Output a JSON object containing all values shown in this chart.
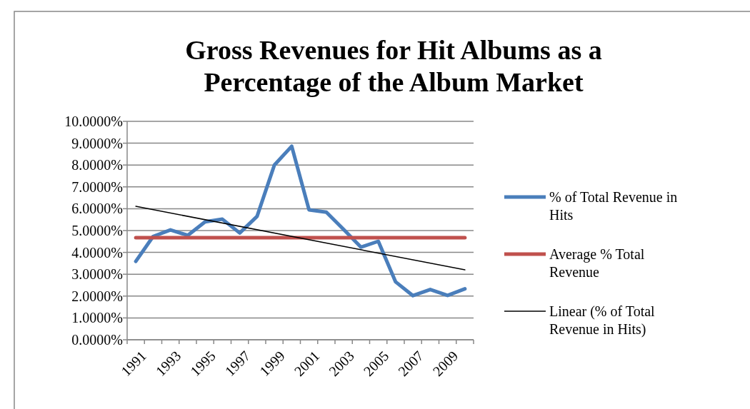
{
  "chart_data": {
    "type": "line",
    "title": "Gross Revenues for Hit Albums as a Percentage of the Album Market",
    "categories": [
      "1991",
      null,
      "1993",
      null,
      "1995",
      null,
      "1997",
      null,
      "1999",
      null,
      "2001",
      null,
      "2003",
      null,
      "2005",
      null,
      "2007",
      null,
      "2009",
      null
    ],
    "series": [
      {
        "name": "% of Total Revenue in Hits",
        "color": "#4a7ebb",
        "values": [
          3.59,
          4.73,
          5.03,
          4.78,
          5.4,
          5.52,
          4.89,
          5.65,
          8.0,
          8.86,
          5.95,
          5.84,
          5.05,
          4.24,
          4.51,
          2.65,
          2.02,
          2.3,
          2.03,
          2.33
        ]
      },
      {
        "name": "Average % Total Revenue",
        "color": "#c0504d",
        "values": [
          4.67,
          4.67,
          4.67,
          4.67,
          4.67,
          4.67,
          4.67,
          4.67,
          4.67,
          4.67,
          4.67,
          4.67,
          4.67,
          4.67,
          4.67,
          4.67,
          4.67,
          4.67,
          4.67,
          4.67
        ]
      },
      {
        "name": "Linear (% of Total Revenue in Hits)",
        "color": "#000000",
        "values": [
          6.11,
          null,
          null,
          null,
          null,
          null,
          null,
          null,
          null,
          null,
          null,
          null,
          null,
          null,
          null,
          null,
          null,
          null,
          null,
          3.2
        ]
      }
    ],
    "ylim": [
      0,
      10
    ],
    "yticks": [
      {
        "value": 0,
        "label": "0.0000%"
      },
      {
        "value": 1,
        "label": "1.0000%"
      },
      {
        "value": 2,
        "label": "2.0000%"
      },
      {
        "value": 3,
        "label": "3.0000%"
      },
      {
        "value": 4,
        "label": "4.0000%"
      },
      {
        "value": 5,
        "label": "5.0000%"
      },
      {
        "value": 6,
        "label": "6.0000%"
      },
      {
        "value": 7,
        "label": "7.0000%"
      },
      {
        "value": 8,
        "label": "8.0000%"
      },
      {
        "value": 9,
        "label": "9.0000%"
      },
      {
        "value": 10,
        "label": "10.0000%"
      }
    ],
    "grid": "y",
    "legend": "right"
  }
}
